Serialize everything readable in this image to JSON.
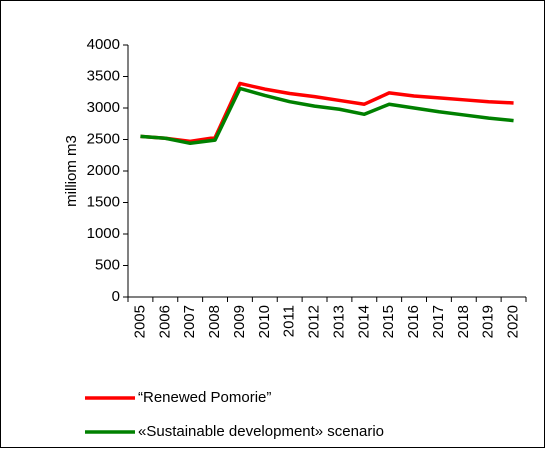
{
  "chart_data": {
    "type": "line",
    "y_label": "milliom m3",
    "categories": [
      "2005",
      "2006",
      "2007",
      "2008",
      "2009",
      "2010",
      "2011",
      "2012",
      "2013",
      "2014",
      "2015",
      "2016",
      "2017",
      "2018",
      "2019",
      "2020"
    ],
    "series": [
      {
        "name": "“Renewed Pomorie”",
        "color": "#ff0000",
        "values": [
          2550,
          2520,
          2470,
          2530,
          3390,
          3300,
          3230,
          3180,
          3120,
          3060,
          3240,
          3190,
          3160,
          3130,
          3100,
          3080
        ]
      },
      {
        "name": "«Sustainable development» scenario",
        "color": "#008000",
        "values": [
          2550,
          2520,
          2440,
          2490,
          3310,
          3200,
          3100,
          3030,
          2980,
          2900,
          3060,
          3000,
          2940,
          2890,
          2840,
          2800
        ]
      }
    ],
    "ylim": [
      0,
      4000
    ],
    "yticks": [
      0,
      500,
      1000,
      1500,
      2000,
      2500,
      3000,
      3500,
      4000
    ],
    "grid": false,
    "legend": "bottom"
  }
}
